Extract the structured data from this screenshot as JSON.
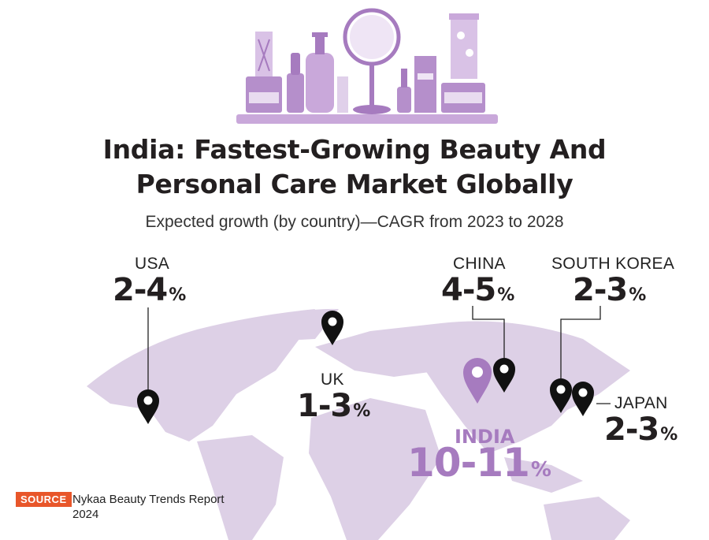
{
  "title_line1": "India: Fastest-Growing Beauty And",
  "title_line2": "Personal Care Market Globally",
  "subtitle": "Expected growth (by country)—CAGR from 2023 to 2028",
  "pct_symbol": "%",
  "countries": {
    "usa": {
      "name": "USA",
      "range": "2-4"
    },
    "uk": {
      "name": "UK",
      "range": "1-3"
    },
    "china": {
      "name": "CHINA",
      "range": "4-5"
    },
    "south_korea": {
      "name": "SOUTH KOREA",
      "range": "2-3"
    },
    "japan": {
      "name": "JAPAN",
      "range": "2-3"
    },
    "india": {
      "name": "INDIA",
      "range": "10-11"
    }
  },
  "source_label": "SOURCE",
  "source_text": "Nykaa Beauty Trends Report 2024",
  "colors": {
    "map": "#ddd0e6",
    "accent": "#a67bbf",
    "pin": "#111111",
    "source_tag": "#e8562a",
    "illustration": "#c9a8da"
  }
}
